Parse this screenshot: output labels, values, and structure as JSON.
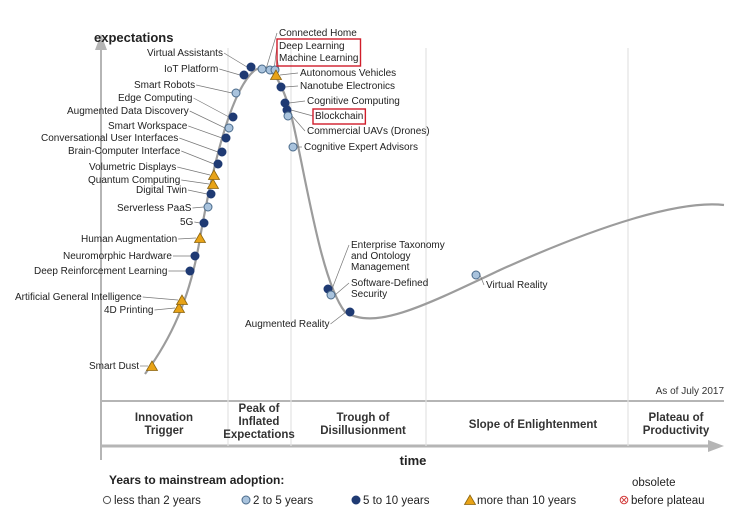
{
  "chart_data": {
    "type": "scatter",
    "ylabel": "expectations",
    "xlabel": "time",
    "note": "As of July 2017",
    "phases": [
      [
        "Innovation",
        "Trigger"
      ],
      [
        "Peak of",
        "Inflated",
        "Expectations"
      ],
      [
        "Trough of",
        "Disillusionment"
      ],
      [
        "Slope of Enlightenment"
      ],
      [
        "Plateau of",
        "Productivity"
      ]
    ],
    "legend": {
      "title": "Years to mainstream adoption:",
      "items": [
        {
          "key": "lt2",
          "label": "less than 2 years"
        },
        {
          "key": "2to5",
          "label": "2 to 5 years"
        },
        {
          "key": "5to10",
          "label": "5 to 10 years"
        },
        {
          "key": "gt10",
          "label": "more than 10 years"
        },
        {
          "key": "obsolete",
          "label_lines": [
            "obsolete",
            "before plateau"
          ]
        }
      ]
    },
    "styles": {
      "lt2": {
        "fill": "#ffffff",
        "stroke": "#555555"
      },
      "2to5": {
        "fill": "#a9c3dd",
        "stroke": "#4a6a8a"
      },
      "5to10": {
        "fill": "#1f3a73",
        "stroke": "#1f3a73"
      },
      "gt10": {
        "fill": "#e8a317",
        "stroke": "#8a6410"
      },
      "obsolete": {
        "fill": "#ffffff",
        "stroke": "#d23b3b"
      }
    },
    "curve_color": "#9c9c9c",
    "highlight_color": "#d01d2a",
    "points": [
      {
        "name": "Smart Dust",
        "cat": "gt10"
      },
      {
        "name": "4D Printing",
        "cat": "gt10"
      },
      {
        "name": "Artificial General Intelligence",
        "cat": "gt10"
      },
      {
        "name": "Deep Reinforcement Learning",
        "cat": "5to10"
      },
      {
        "name": "Neuromorphic Hardware",
        "cat": "5to10"
      },
      {
        "name": "Human Augmentation",
        "cat": "gt10"
      },
      {
        "name": "5G",
        "cat": "5to10"
      },
      {
        "name": "Serverless PaaS",
        "cat": "2to5"
      },
      {
        "name": "Digital Twin",
        "cat": "5to10"
      },
      {
        "name": "Quantum Computing",
        "cat": "gt10"
      },
      {
        "name": "Volumetric Displays",
        "cat": "gt10"
      },
      {
        "name": "Brain-Computer Interface",
        "cat": "5to10"
      },
      {
        "name": "Conversational User Interfaces",
        "cat": "5to10"
      },
      {
        "name": "Smart Workspace",
        "cat": "5to10"
      },
      {
        "name": "Augmented Data Discovery",
        "cat": "2to5"
      },
      {
        "name": "Edge Computing",
        "cat": "5to10"
      },
      {
        "name": "Smart Robots",
        "cat": "2to5"
      },
      {
        "name": "IoT Platform",
        "cat": "5to10"
      },
      {
        "name": "Virtual Assistants",
        "cat": "5to10"
      },
      {
        "name": "Connected Home",
        "cat": "2to5"
      },
      {
        "name": "Deep Learning",
        "cat": "2to5",
        "highlight": true
      },
      {
        "name": "Machine Learning",
        "cat": "2to5",
        "highlight": true
      },
      {
        "name": "Autonomous Vehicles",
        "cat": "gt10"
      },
      {
        "name": "Nanotube Electronics",
        "cat": "5to10"
      },
      {
        "name": "Cognitive Computing",
        "cat": "5to10"
      },
      {
        "name": "Blockchain",
        "cat": "5to10",
        "highlight": true
      },
      {
        "name": "Commercial UAVs (Drones)",
        "cat": "2to5"
      },
      {
        "name": "Cognitive Expert Advisors",
        "cat": "2to5"
      },
      {
        "name": "Enterprise Taxonomy and Ontology Management",
        "cat": "5to10",
        "label_lines": [
          "Enterprise Taxonomy",
          "and Ontology",
          "Management"
        ]
      },
      {
        "name": "Software-Defined Security",
        "cat": "2to5",
        "label_lines": [
          "Software-Defined",
          "Security"
        ]
      },
      {
        "name": "Augmented Reality",
        "cat": "5to10"
      },
      {
        "name": "Virtual Reality",
        "cat": "2to5"
      }
    ]
  }
}
